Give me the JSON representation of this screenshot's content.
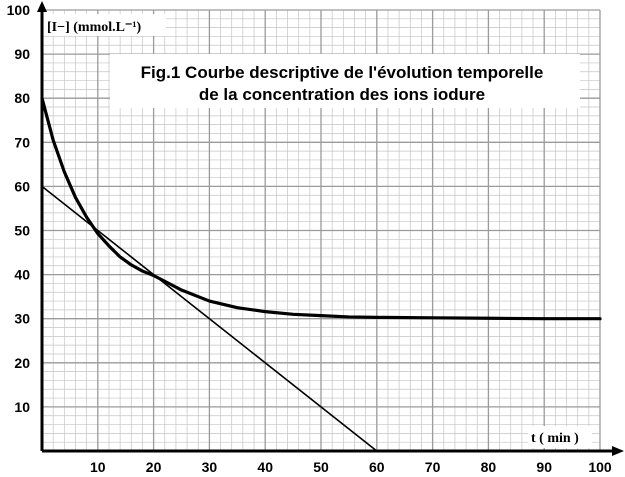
{
  "chart_data": {
    "type": "line",
    "title_lines": [
      "Fig.1 Courbe descriptive de l'évolution temporelle",
      "de la concentration des ions iodure"
    ],
    "ylabel": "[I−] (mmol.L⁻¹)",
    "xlabel": "t ( min )",
    "xlim": [
      0,
      100
    ],
    "ylim": [
      0,
      100
    ],
    "xticks": [
      10,
      20,
      30,
      40,
      50,
      60,
      70,
      80,
      90,
      100
    ],
    "yticks": [
      10,
      20,
      30,
      40,
      50,
      60,
      70,
      80,
      90,
      100
    ],
    "grid": true,
    "series": [
      {
        "role": "curve",
        "x": [
          0,
          2,
          4,
          6,
          8,
          10,
          12,
          14,
          16,
          18,
          20,
          25,
          30,
          35,
          40,
          45,
          50,
          55,
          60,
          70,
          80,
          90,
          100
        ],
        "y": [
          80,
          70.5,
          63.3,
          57.5,
          53.0,
          49.3,
          46.5,
          44.0,
          42.2,
          40.8,
          39.8,
          36.5,
          34.0,
          32.5,
          31.6,
          31.0,
          30.7,
          30.4,
          30.3,
          30.2,
          30.1,
          30.0,
          30.0
        ]
      },
      {
        "role": "tangent",
        "x": [
          0,
          60
        ],
        "y": [
          60,
          0
        ]
      }
    ],
    "colors": {
      "curve": "#000000",
      "grid": "#9a9a9a",
      "axes": "#000000"
    }
  }
}
